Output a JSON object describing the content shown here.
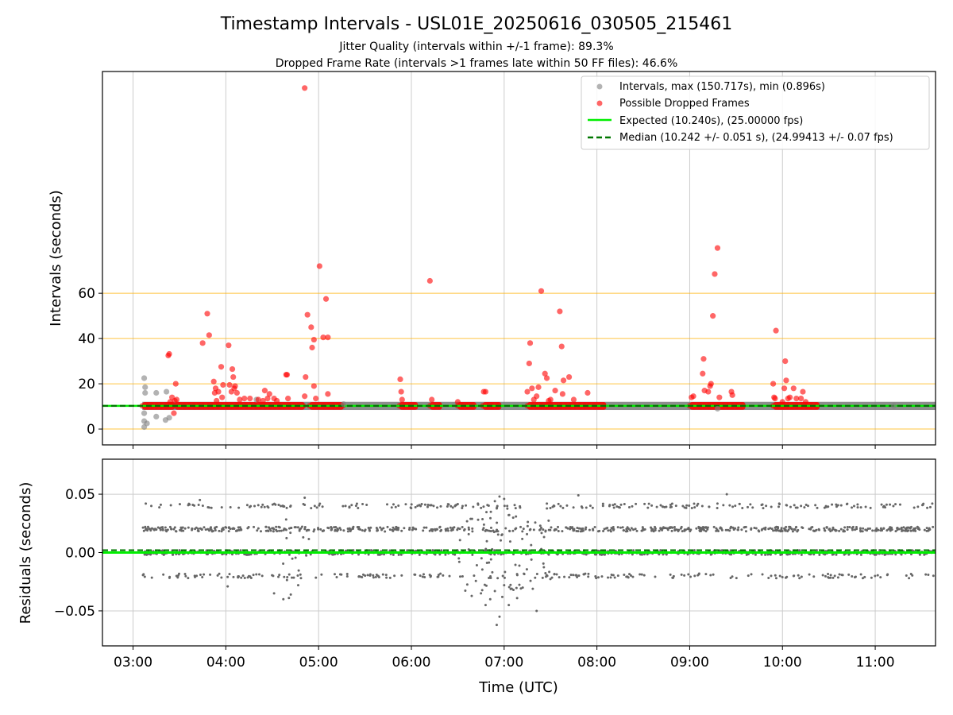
{
  "colors": {
    "intervals": "#808080",
    "dropped": "#ff0000",
    "expected": "#00ee00",
    "median": "#007700",
    "threshold_lines": "#ffb000",
    "grid": "#cccccc",
    "residuals": "#666666"
  },
  "chart_data": [
    {
      "type": "scatter",
      "title": "Timestamp Intervals - USL01E_20250616_030505_215461",
      "subtitle_lines": [
        "Jitter Quality (intervals within +/-1 frame): 89.3%",
        "Dropped Frame Rate (intervals >1 frames late within 50 FF files): 46.6%"
      ],
      "xlabel": "",
      "ylabel": "Intervals (seconds)",
      "x_axis": "time (UTC, hours)",
      "xlim": [
        2.67,
        11.65
      ],
      "ylim": [
        -7,
        158
      ],
      "yticks": [
        0,
        20,
        40,
        60
      ],
      "ytick_labels": [
        "0",
        "20",
        "40",
        "60"
      ],
      "grid": "vertical",
      "horizontal_reference_lines": [
        0,
        20,
        40,
        60
      ],
      "legend_placement": "top-right",
      "legend": [
        {
          "label": "Intervals, max (150.717s), min (0.896s)",
          "marker": "scatter",
          "color": "#808080"
        },
        {
          "label": "Possible Dropped Frames",
          "marker": "scatter",
          "color": "#ff0000"
        },
        {
          "label": "Expected (10.240s), (25.00000 fps)",
          "marker": "solid-line",
          "color": "#00ee00"
        },
        {
          "label": "Median (10.242 +/- 0.051 s), (24.99413 +/- 0.07 fps)",
          "marker": "dashed-line",
          "color": "#007700"
        }
      ],
      "expected_interval": 10.24,
      "median_interval": 10.242,
      "baseline_segments": [
        [
          3.1,
          3.45
        ],
        [
          3.45,
          4.85
        ],
        [
          4.9,
          5.27
        ],
        [
          5.87,
          6.07
        ],
        [
          6.2,
          6.33
        ],
        [
          6.5,
          6.7
        ],
        [
          6.77,
          6.97
        ],
        [
          7.25,
          8.1
        ],
        [
          9.0,
          9.6
        ],
        [
          9.9,
          10.4
        ]
      ],
      "series": [
        {
          "name": "Intervals, max (150.717s), min (0.896s)",
          "points": [
            [
              3.12,
              0.9
            ],
            [
              3.12,
              3.5
            ],
            [
              3.12,
              7
            ],
            [
              3.13,
              16
            ],
            [
              3.13,
              18.5
            ],
            [
              3.12,
              22.5
            ],
            [
              3.15,
              2.5
            ],
            [
              3.25,
              5.5
            ],
            [
              3.25,
              16
            ],
            [
              3.35,
              4
            ],
            [
              3.36,
              16.5
            ],
            [
              3.39,
              5
            ],
            [
              4.33,
              13
            ],
            [
              5.27,
              11
            ],
            [
              9.3,
              9
            ],
            [
              11.2,
              10.2
            ]
          ]
        },
        {
          "name": "Possible Dropped Frames",
          "points": [
            [
              3.38,
              32.5
            ],
            [
              3.39,
              33.2
            ],
            [
              3.4,
              12
            ],
            [
              3.42,
              14
            ],
            [
              3.45,
              12.5
            ],
            [
              3.46,
              20
            ],
            [
              3.47,
              13
            ],
            [
              3.44,
              7
            ],
            [
              3.75,
              38
            ],
            [
              3.8,
              51
            ],
            [
              3.82,
              41.5
            ],
            [
              3.87,
              21
            ],
            [
              3.88,
              16
            ],
            [
              3.89,
              18
            ],
            [
              3.9,
              12.5
            ],
            [
              3.92,
              16.5
            ],
            [
              3.95,
              27.5
            ],
            [
              3.96,
              14
            ],
            [
              3.97,
              19.5
            ],
            [
              4.03,
              37
            ],
            [
              4.04,
              19.5
            ],
            [
              4.06,
              16.5
            ],
            [
              4.07,
              26.5
            ],
            [
              4.08,
              23
            ],
            [
              4.09,
              18
            ],
            [
              4.1,
              19
            ],
            [
              4.12,
              16
            ],
            [
              4.15,
              13
            ],
            [
              4.2,
              13.5
            ],
            [
              4.26,
              13.5
            ],
            [
              4.35,
              13
            ],
            [
              4.4,
              12.5
            ],
            [
              4.42,
              17
            ],
            [
              4.45,
              13.5
            ],
            [
              4.47,
              15.5
            ],
            [
              4.52,
              13.5
            ],
            [
              4.55,
              12.5
            ],
            [
              4.65,
              24
            ],
            [
              4.66,
              24
            ],
            [
              4.67,
              13.5
            ],
            [
              4.85,
              150.7
            ],
            [
              4.85,
              14.5
            ],
            [
              4.86,
              23
            ],
            [
              4.88,
              50.5
            ],
            [
              4.92,
              45
            ],
            [
              4.93,
              36
            ],
            [
              4.95,
              39.5
            ],
            [
              4.95,
              19
            ],
            [
              4.97,
              13.5
            ],
            [
              5.01,
              72
            ],
            [
              5.05,
              40.5
            ],
            [
              5.1,
              40.5
            ],
            [
              5.08,
              57.5
            ],
            [
              5.1,
              15.5
            ],
            [
              5.88,
              22
            ],
            [
              5.89,
              16.5
            ],
            [
              5.9,
              13
            ],
            [
              6.2,
              65.5
            ],
            [
              6.22,
              13
            ],
            [
              6.5,
              12
            ],
            [
              6.78,
              16.5
            ],
            [
              6.8,
              16.5
            ],
            [
              7.25,
              16.5
            ],
            [
              7.27,
              29
            ],
            [
              7.28,
              38
            ],
            [
              7.3,
              18
            ],
            [
              7.32,
              13
            ],
            [
              7.35,
              14.5
            ],
            [
              7.37,
              18.5
            ],
            [
              7.4,
              61
            ],
            [
              7.44,
              24.5
            ],
            [
              7.46,
              22.5
            ],
            [
              7.48,
              12.5
            ],
            [
              7.5,
              13
            ],
            [
              7.55,
              17
            ],
            [
              7.6,
              52
            ],
            [
              7.62,
              36.5
            ],
            [
              7.64,
              21.5
            ],
            [
              7.63,
              15.5
            ],
            [
              7.7,
              23
            ],
            [
              7.75,
              13
            ],
            [
              7.9,
              16
            ],
            [
              9.02,
              14
            ],
            [
              9.04,
              14.5
            ],
            [
              9.15,
              31
            ],
            [
              9.14,
              24.5
            ],
            [
              9.16,
              17
            ],
            [
              9.2,
              16.5
            ],
            [
              9.22,
              19
            ],
            [
              9.23,
              20
            ],
            [
              9.25,
              50
            ],
            [
              9.27,
              68.5
            ],
            [
              9.3,
              80
            ],
            [
              9.32,
              14
            ],
            [
              9.45,
              16.5
            ],
            [
              9.46,
              15
            ],
            [
              9.9,
              20
            ],
            [
              9.91,
              14
            ],
            [
              9.93,
              43.5
            ],
            [
              9.92,
              13.5
            ],
            [
              10.0,
              12
            ],
            [
              10.02,
              18
            ],
            [
              10.03,
              30
            ],
            [
              10.04,
              21.5
            ],
            [
              10.08,
              14
            ],
            [
              10.12,
              18
            ],
            [
              10.15,
              13.5
            ],
            [
              10.2,
              13.5
            ],
            [
              10.22,
              16.5
            ],
            [
              10.25,
              12
            ],
            [
              10.06,
              13.5
            ]
          ]
        }
      ]
    },
    {
      "type": "scatter",
      "title": "",
      "xlabel": "Time (UTC)",
      "ylabel": "Residuals (seconds)",
      "xlim": [
        2.67,
        11.65
      ],
      "ylim": [
        -0.08,
        0.08
      ],
      "yticks": [
        0.05,
        0.0,
        -0.05
      ],
      "ytick_labels": [
        "0.05",
        "0.00",
        "−0.05"
      ],
      "xticks": [
        3,
        4,
        5,
        6,
        7,
        8,
        9,
        10,
        11
      ],
      "xtick_labels": [
        "03:00",
        "04:00",
        "05:00",
        "06:00",
        "07:00",
        "08:00",
        "09:00",
        "10:00",
        "11:00"
      ],
      "grid": "both",
      "expected_residual": 0.0,
      "median_residual": 0.002,
      "residual_levels": [
        0.04,
        0.02,
        0.0,
        -0.02
      ],
      "time_range": [
        3.1,
        11.65
      ],
      "residual_outliers": [
        [
          4.52,
          -0.035
        ],
        [
          4.62,
          -0.04
        ],
        [
          4.68,
          -0.039
        ],
        [
          4.7,
          -0.036
        ],
        [
          4.78,
          -0.028
        ],
        [
          4.02,
          -0.029
        ],
        [
          6.8,
          -0.045
        ],
        [
          6.85,
          -0.04
        ],
        [
          6.92,
          -0.062
        ],
        [
          6.95,
          -0.055
        ],
        [
          6.98,
          -0.038
        ],
        [
          7.05,
          -0.045
        ],
        [
          7.1,
          -0.032
        ],
        [
          7.35,
          -0.05
        ],
        [
          7.0,
          -0.028
        ],
        [
          6.9,
          -0.033
        ],
        [
          7.2,
          -0.03
        ],
        [
          6.75,
          -0.035
        ],
        [
          7.8,
          0.049
        ],
        [
          9.4,
          0.05
        ],
        [
          6.95,
          0.048
        ],
        [
          7.0,
          0.046
        ],
        [
          6.9,
          0.044
        ],
        [
          3.72,
          0.045
        ],
        [
          4.85,
          0.047
        ]
      ]
    }
  ]
}
